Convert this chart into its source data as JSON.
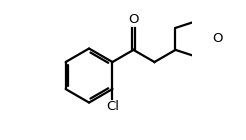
{
  "background_color": "#ffffff",
  "line_color": "#000000",
  "line_width": 1.6,
  "text_color": "#000000",
  "font_size": 9.5,
  "O_label": "O",
  "Cl_label": "Cl",
  "figsize": [
    2.46,
    1.4
  ],
  "dpi": 100,
  "xlim": [
    0.0,
    1.0
  ],
  "ylim": [
    0.0,
    1.0
  ]
}
